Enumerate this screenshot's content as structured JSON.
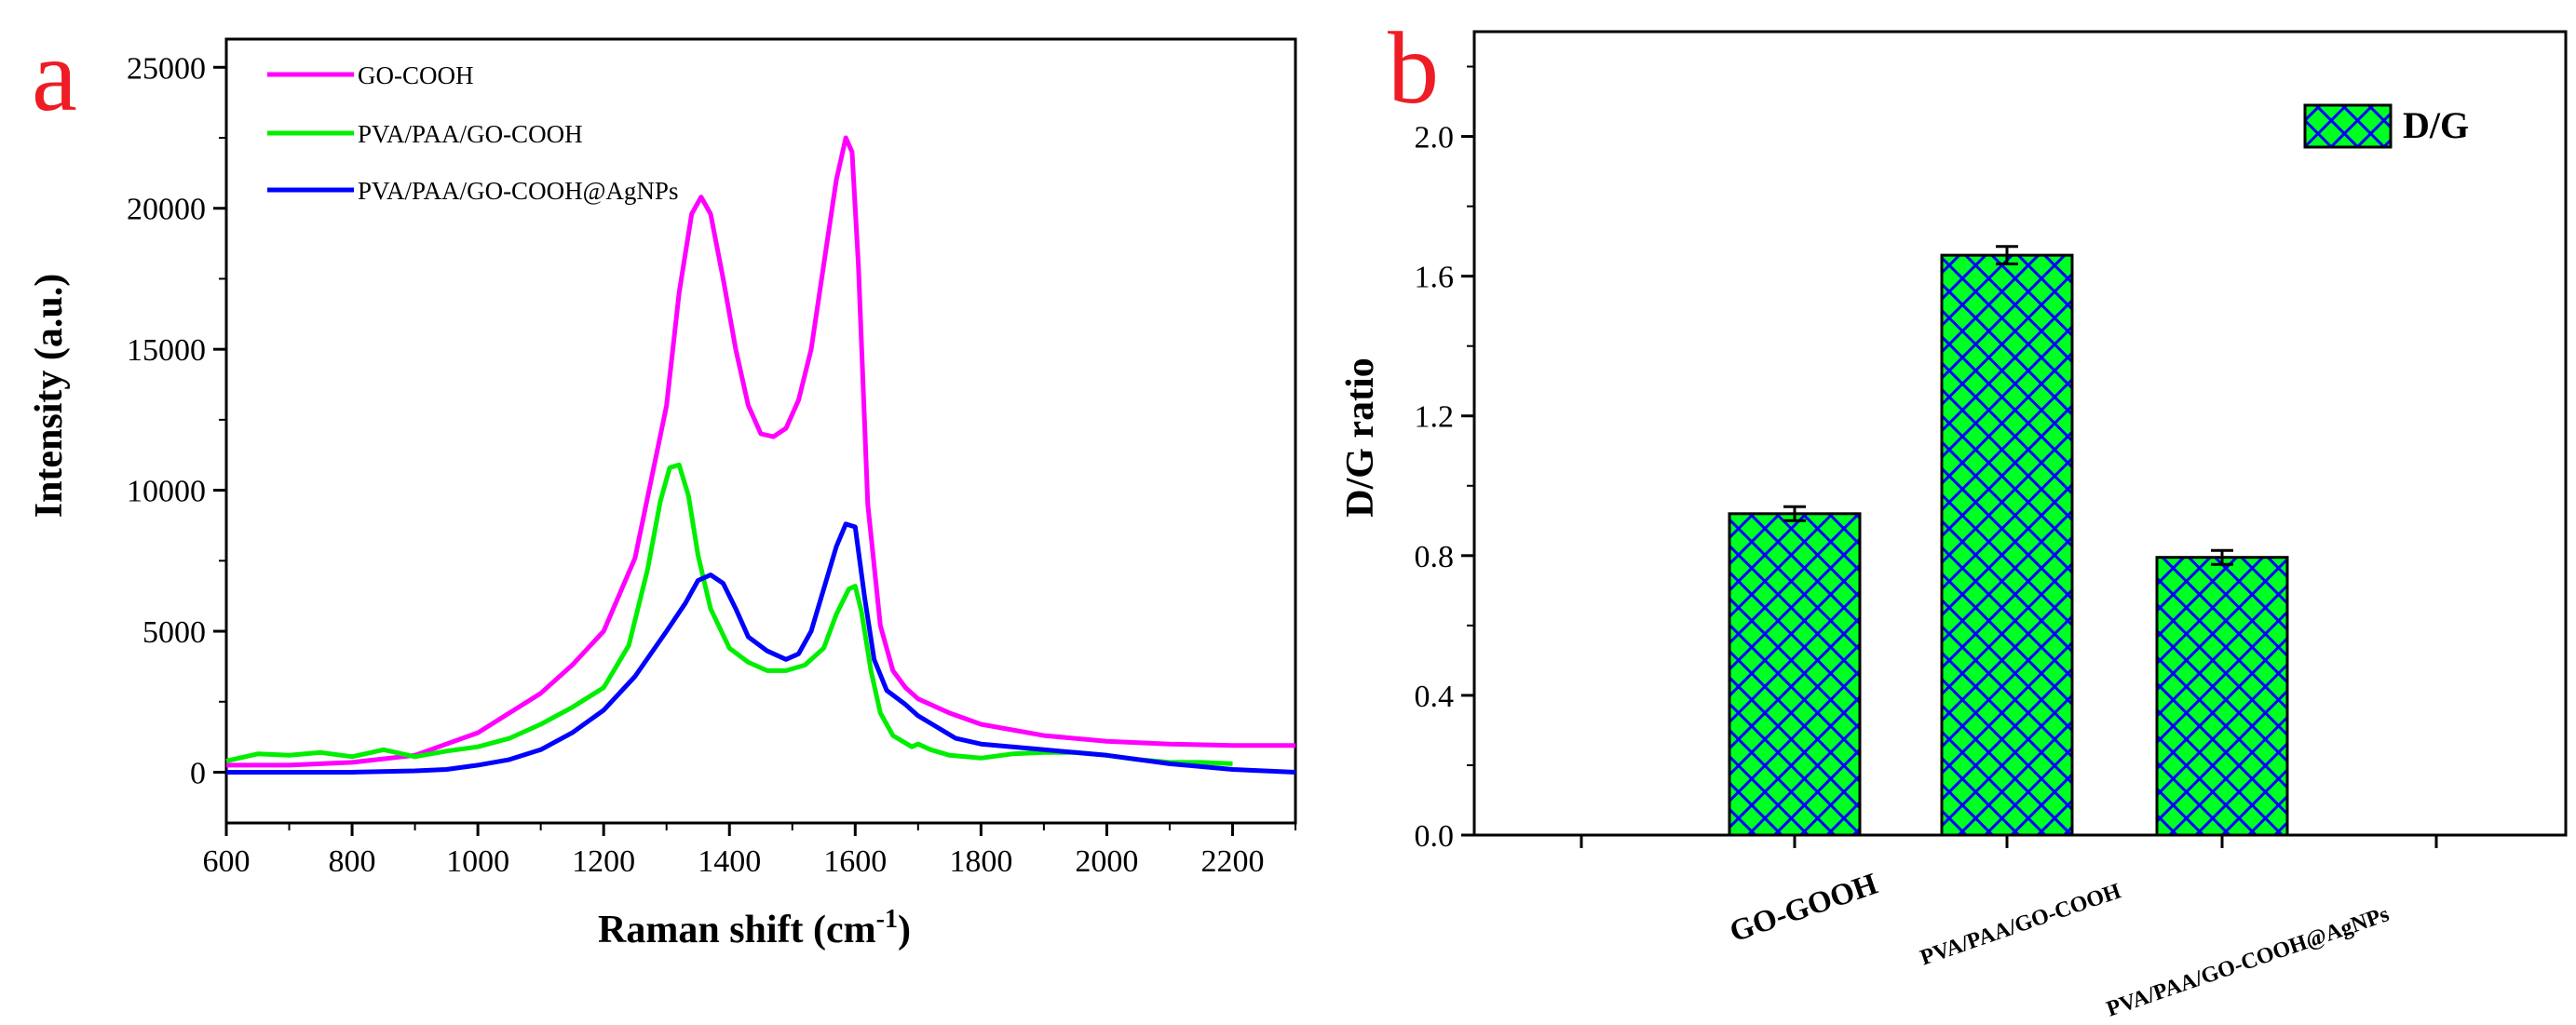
{
  "chart_data": [
    {
      "panel": "a",
      "type": "line",
      "xlabel": "Raman shift (cm",
      "xlabel_sup": "-1",
      "xlabel_close": ")",
      "ylabel": "Intensity (a.u.)",
      "xlim": [
        600,
        2300
      ],
      "ylim": [
        -1800,
        26000
      ],
      "xticks": [
        600,
        800,
        1000,
        1200,
        1400,
        1600,
        1800,
        2000,
        2200
      ],
      "yticks": [
        0,
        5000,
        10000,
        15000,
        20000,
        25000
      ],
      "legend_position": "top-left",
      "series": [
        {
          "name": "GO-COOH",
          "color": "#ff00ff",
          "x": [
            600,
            700,
            800,
            900,
            1000,
            1100,
            1150,
            1200,
            1250,
            1300,
            1320,
            1340,
            1355,
            1370,
            1390,
            1410,
            1430,
            1450,
            1470,
            1490,
            1510,
            1530,
            1550,
            1570,
            1585,
            1595,
            1605,
            1620,
            1640,
            1660,
            1680,
            1700,
            1750,
            1800,
            1900,
            2000,
            2100,
            2200,
            2300
          ],
          "y": [
            250,
            250,
            350,
            600,
            1400,
            2800,
            3800,
            5000,
            7600,
            13000,
            17000,
            19800,
            20400,
            19800,
            17500,
            15000,
            13000,
            12000,
            11900,
            12200,
            13200,
            15000,
            18000,
            21000,
            22500,
            22000,
            18000,
            9500,
            5200,
            3600,
            3000,
            2600,
            2100,
            1700,
            1300,
            1100,
            1000,
            950,
            950
          ]
        },
        {
          "name": "PVA/PAA/GO-COOH",
          "color": "#00ee00",
          "x": [
            600,
            650,
            700,
            750,
            800,
            850,
            900,
            950,
            1000,
            1050,
            1100,
            1150,
            1200,
            1240,
            1270,
            1290,
            1305,
            1320,
            1335,
            1350,
            1370,
            1400,
            1430,
            1460,
            1490,
            1520,
            1550,
            1570,
            1590,
            1600,
            1610,
            1625,
            1640,
            1660,
            1690,
            1700,
            1720,
            1750,
            1800,
            1850,
            1900,
            1950,
            2000,
            2050,
            2100,
            2150,
            2200
          ],
          "y": [
            400,
            650,
            600,
            700,
            550,
            800,
            550,
            750,
            900,
            1200,
            1700,
            2300,
            3000,
            4500,
            7200,
            9600,
            10800,
            10900,
            9800,
            7700,
            5800,
            4400,
            3900,
            3600,
            3600,
            3800,
            4400,
            5600,
            6500,
            6600,
            5700,
            3600,
            2100,
            1300,
            900,
            1000,
            800,
            600,
            500,
            650,
            700,
            700,
            600,
            450,
            350,
            350,
            300
          ]
        },
        {
          "name": "PVA/PAA/GO-COOH@AgNPs",
          "color": "#0000ff",
          "x": [
            600,
            700,
            800,
            900,
            950,
            1000,
            1050,
            1100,
            1150,
            1200,
            1250,
            1300,
            1330,
            1350,
            1370,
            1390,
            1410,
            1430,
            1460,
            1490,
            1510,
            1530,
            1550,
            1570,
            1585,
            1600,
            1615,
            1630,
            1650,
            1680,
            1700,
            1730,
            1760,
            1800,
            1900,
            2000,
            2100,
            2200,
            2300
          ],
          "y": [
            0,
            0,
            0,
            50,
            100,
            250,
            450,
            800,
            1400,
            2200,
            3400,
            5000,
            6000,
            6800,
            7000,
            6700,
            5800,
            4800,
            4300,
            4000,
            4200,
            5000,
            6500,
            8000,
            8800,
            8700,
            6200,
            4000,
            2900,
            2400,
            2000,
            1600,
            1200,
            1000,
            800,
            600,
            300,
            100,
            0
          ]
        }
      ]
    },
    {
      "panel": "b",
      "type": "bar",
      "ylabel": "D/G ratio",
      "categories": [
        "GO-GOOH",
        "PVA/PAA/GO-COOH",
        "PVA/PAA/GO-COOH@AgNPs"
      ],
      "values": [
        0.92,
        1.66,
        0.795
      ],
      "errors": [
        0.02,
        0.025,
        0.02
      ],
      "legend": "D/G",
      "ylim": [
        0,
        2.3
      ],
      "yticks": [
        0.0,
        0.4,
        0.8,
        1.2,
        1.6,
        2.0
      ],
      "ytick_labels": [
        "0.0",
        "0.4",
        "0.8",
        "1.2",
        "1.6",
        "2.0"
      ],
      "bar_fill": "#00ff22",
      "bar_hatch": "#0000ff",
      "legend_position": "top-right"
    }
  ],
  "panels": {
    "a_label": "a",
    "b_label": "b"
  }
}
